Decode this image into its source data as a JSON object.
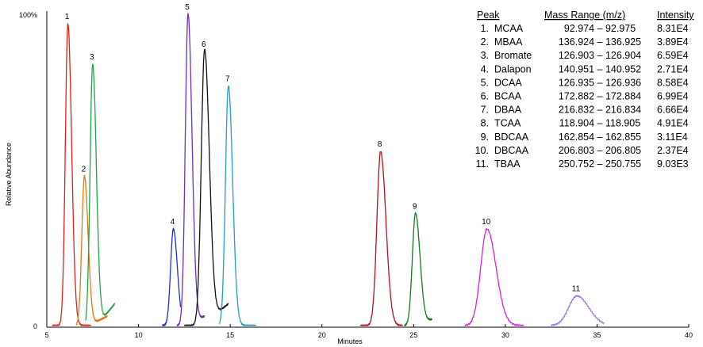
{
  "chart_data": {
    "type": "line",
    "xlabel": "Minutes",
    "ylabel": "Relative Abundance",
    "xlim": [
      5,
      40
    ],
    "x_ticks": [
      "5",
      "10",
      "15",
      "20",
      "25",
      "30",
      "35",
      "40"
    ],
    "y_ticks": [
      "0",
      "100%"
    ],
    "grid": false,
    "series": [
      {
        "label": "1",
        "color": "#e0201c",
        "rt": 6.15,
        "height": 97,
        "width": 0.14,
        "start": 5.3,
        "end": 7.4,
        "baseline": 0
      },
      {
        "label": "2",
        "color": "#e07818",
        "rt": 7.05,
        "height": 48,
        "width": 0.14,
        "start": 6.6,
        "end": 8.3,
        "baseline": 3
      },
      {
        "label": "3",
        "color": "#1fa34a",
        "rt": 7.5,
        "height": 84,
        "width": 0.14,
        "start": 7.1,
        "end": 8.7,
        "baseline": 7
      },
      {
        "label": "4",
        "color": "#1f2fd0",
        "rt": 11.9,
        "height": 31,
        "width": 0.15,
        "start": 11.3,
        "end": 12.3,
        "baseline": 0
      },
      {
        "label": "5",
        "color": "#6a2fc0",
        "rt": 12.7,
        "height": 100,
        "width": 0.15,
        "start": 12.1,
        "end": 13.6,
        "baseline": 3
      },
      {
        "label": "6",
        "color": "#111111",
        "rt": 13.6,
        "height": 88,
        "width": 0.18,
        "start": 12.5,
        "end": 14.9,
        "baseline": 7
      },
      {
        "label": "7",
        "color": "#1fa0c0",
        "rt": 14.9,
        "height": 77,
        "width": 0.16,
        "start": 14.4,
        "end": 16.4,
        "baseline": 0
      },
      {
        "label": "8",
        "color": "#b01020",
        "rt": 23.2,
        "height": 56,
        "width": 0.2,
        "start": 22.1,
        "end": 24.4,
        "baseline": 0
      },
      {
        "label": "9",
        "color": "#177a24",
        "rt": 25.1,
        "height": 36,
        "width": 0.17,
        "start": 24.5,
        "end": 26.0,
        "baseline": 2
      },
      {
        "label": "10",
        "color": "#e01ce0",
        "rt": 29.0,
        "height": 31,
        "width": 0.34,
        "start": 27.8,
        "end": 31.0,
        "baseline": 0
      },
      {
        "label": "11",
        "color": "#9a78f0",
        "rt": 33.9,
        "height": 9.5,
        "width": 0.45,
        "start": 32.5,
        "end": 35.4,
        "baseline": 0
      }
    ]
  },
  "legend": {
    "headers": {
      "peak": "Peak",
      "mass": "Mass Range (m/z)",
      "intensity": "Intensity"
    },
    "rows": [
      {
        "num": "1.",
        "name": "MCAA",
        "mass": "92.974 – 92.975",
        "intensity": "8.31E4"
      },
      {
        "num": "2.",
        "name": "MBAA",
        "mass": "136.924 – 136.925",
        "intensity": "3.89E4"
      },
      {
        "num": "3.",
        "name": "Bromate",
        "mass": "126.903 – 126.904",
        "intensity": "6.59E4"
      },
      {
        "num": "4.",
        "name": "Dalapon",
        "mass": "140.951 – 140.952",
        "intensity": "2.71E4"
      },
      {
        "num": "5.",
        "name": "DCAA",
        "mass": "126.935 – 126.936",
        "intensity": "8.58E4"
      },
      {
        "num": "6.",
        "name": "BCAA",
        "mass": "172.882 – 172.884",
        "intensity": "6.99E4"
      },
      {
        "num": "7.",
        "name": "DBAA",
        "mass": "216.832 – 216.834",
        "intensity": "6.66E4"
      },
      {
        "num": "8.",
        "name": "TCAA",
        "mass": "118.904 – 118.905",
        "intensity": "4.91E4"
      },
      {
        "num": "9.",
        "name": "BDCAA",
        "mass": "162.854 – 162.855",
        "intensity": "3.11E4"
      },
      {
        "num": "10.",
        "name": "DBCAA",
        "mass": "206.803 – 206.805",
        "intensity": "2.37E4"
      },
      {
        "num": "11.",
        "name": "TBAA",
        "mass": "250.752 – 250.755",
        "intensity": "9.03E3"
      }
    ]
  }
}
